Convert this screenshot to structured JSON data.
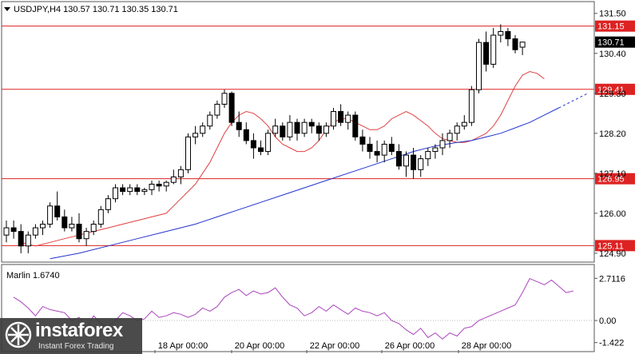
{
  "chart_data": {
    "type": "candlestick",
    "symbol_header": "USDJPY,H4  130.57 130.71 130.35 130.71",
    "y_ticks": [
      "131.50",
      "130.40",
      "129.30",
      "128.20",
      "127.10",
      "126.00",
      "124.90"
    ],
    "x_ticks": [
      "18 Apr 00:00",
      "20 Apr 00:00",
      "22 Apr 00:00",
      "26 Apr 00:00",
      "28 Apr 00:00"
    ],
    "ylim": [
      124.7,
      131.78
    ],
    "current_price": "130.71",
    "levels": [
      {
        "label": "131.15",
        "value": 131.15
      },
      {
        "label": "129.41",
        "value": 129.41
      },
      {
        "label": "126.95",
        "value": 126.95
      },
      {
        "label": "125.11",
        "value": 125.11
      }
    ],
    "colors": {
      "bull": "#ffffff",
      "bear": "#000000",
      "level": "#dd2222",
      "ma_fast": "#e04040",
      "ma_slow": "#2233cc",
      "oscillator": "#aa44bb"
    },
    "candles": [
      [
        125.4,
        125.8,
        125.2,
        125.6
      ],
      [
        125.6,
        125.8,
        125.3,
        125.5
      ],
      [
        125.5,
        125.7,
        124.9,
        125.1
      ],
      [
        125.1,
        125.5,
        124.9,
        125.4
      ],
      [
        125.4,
        125.7,
        125.3,
        125.6
      ],
      [
        125.6,
        125.8,
        125.4,
        125.7
      ],
      [
        125.7,
        126.3,
        125.6,
        126.2
      ],
      [
        126.2,
        126.6,
        125.8,
        125.9
      ],
      [
        125.9,
        126.1,
        125.5,
        125.6
      ],
      [
        125.6,
        125.9,
        125.5,
        125.7
      ],
      [
        125.7,
        126.0,
        125.2,
        125.3
      ],
      [
        125.3,
        125.6,
        125.1,
        125.5
      ],
      [
        125.5,
        125.8,
        125.4,
        125.7
      ],
      [
        125.7,
        126.2,
        125.6,
        126.1
      ],
      [
        126.1,
        126.5,
        126.0,
        126.4
      ],
      [
        126.4,
        126.8,
        126.3,
        126.7
      ],
      [
        126.7,
        126.8,
        126.5,
        126.6
      ],
      [
        126.6,
        126.8,
        126.5,
        126.7
      ],
      [
        126.7,
        126.8,
        126.5,
        126.6
      ],
      [
        126.6,
        126.7,
        126.5,
        126.65
      ],
      [
        126.65,
        126.9,
        126.5,
        126.8
      ],
      [
        126.8,
        126.9,
        126.6,
        126.75
      ],
      [
        126.75,
        126.9,
        126.6,
        126.85
      ],
      [
        126.85,
        127.2,
        126.8,
        127.0
      ],
      [
        127.0,
        127.3,
        126.8,
        127.2
      ],
      [
        127.2,
        128.2,
        127.1,
        128.1
      ],
      [
        128.1,
        128.4,
        127.9,
        128.2
      ],
      [
        128.2,
        128.5,
        128.1,
        128.4
      ],
      [
        128.4,
        128.8,
        128.3,
        128.7
      ],
      [
        128.7,
        129.1,
        128.6,
        129.0
      ],
      [
        129.0,
        129.4,
        128.9,
        129.3
      ],
      [
        129.3,
        129.35,
        128.4,
        128.5
      ],
      [
        128.5,
        128.8,
        128.1,
        128.3
      ],
      [
        128.3,
        128.5,
        127.9,
        128.0
      ],
      [
        128.0,
        128.2,
        127.5,
        127.8
      ],
      [
        127.8,
        128.0,
        127.6,
        127.7
      ],
      [
        127.7,
        128.3,
        127.6,
        128.2
      ],
      [
        128.2,
        128.6,
        128.1,
        128.4
      ],
      [
        128.4,
        128.5,
        128.0,
        128.1
      ],
      [
        128.1,
        128.7,
        128.0,
        128.5
      ],
      [
        128.5,
        128.6,
        128.0,
        128.2
      ],
      [
        128.2,
        128.6,
        128.1,
        128.5
      ],
      [
        128.5,
        128.6,
        128.2,
        128.4
      ],
      [
        128.4,
        128.5,
        128.0,
        128.2
      ],
      [
        128.2,
        128.5,
        128.1,
        128.4
      ],
      [
        128.4,
        128.9,
        128.3,
        128.8
      ],
      [
        128.8,
        129.0,
        128.4,
        128.5
      ],
      [
        128.5,
        128.8,
        128.3,
        128.7
      ],
      [
        128.7,
        128.8,
        128.0,
        128.1
      ],
      [
        128.1,
        128.3,
        127.7,
        127.9
      ],
      [
        127.9,
        128.1,
        127.5,
        127.7
      ],
      [
        127.7,
        128.0,
        127.4,
        127.6
      ],
      [
        127.6,
        128.0,
        127.4,
        127.9
      ],
      [
        127.9,
        128.1,
        127.6,
        127.7
      ],
      [
        127.7,
        127.9,
        127.2,
        127.3
      ],
      [
        127.3,
        127.7,
        127.0,
        127.6
      ],
      [
        127.6,
        127.8,
        126.95,
        127.2
      ],
      [
        127.2,
        127.6,
        127.0,
        127.5
      ],
      [
        127.5,
        127.8,
        127.3,
        127.7
      ],
      [
        127.7,
        127.9,
        127.5,
        127.8
      ],
      [
        127.8,
        128.2,
        127.6,
        128.0
      ],
      [
        128.0,
        128.3,
        127.8,
        128.2
      ],
      [
        128.2,
        128.5,
        128.0,
        128.4
      ],
      [
        128.4,
        128.7,
        128.3,
        128.5
      ],
      [
        128.5,
        129.5,
        128.4,
        129.4
      ],
      [
        129.4,
        130.8,
        129.3,
        130.7
      ],
      [
        130.7,
        131.0,
        129.9,
        130.1
      ],
      [
        130.1,
        131.1,
        130.0,
        130.9
      ],
      [
        130.9,
        131.2,
        130.7,
        131.0
      ],
      [
        131.0,
        131.1,
        130.6,
        130.8
      ],
      [
        130.8,
        130.9,
        130.4,
        130.5
      ],
      [
        130.57,
        130.71,
        130.35,
        130.71
      ]
    ],
    "ma_fast": [
      125.2,
      125.1,
      125.2,
      125.3,
      125.4,
      125.5,
      125.6,
      125.7,
      125.8,
      125.9,
      126.0,
      126.2,
      126.4,
      126.6,
      126.8,
      127.1,
      127.4,
      127.8,
      128.2,
      128.5,
      128.7,
      128.8,
      128.75,
      128.6,
      128.4,
      128.1,
      127.9,
      127.8,
      127.7,
      127.7,
      127.8,
      128.0,
      128.3,
      128.5,
      128.6,
      128.6,
      128.5,
      128.4,
      128.3,
      128.3,
      128.4,
      128.6,
      128.7,
      128.8,
      128.7,
      128.55,
      128.4,
      128.2,
      128.05,
      128.0,
      127.95,
      127.95,
      128.0,
      128.1,
      128.2,
      128.4,
      128.7,
      129.1,
      129.5,
      129.8,
      129.9,
      129.85,
      129.7
    ],
    "ma_fast_x": [
      2,
      4,
      6,
      8,
      10,
      12,
      14,
      16,
      18,
      20,
      22,
      23,
      24,
      25,
      26,
      27,
      28,
      29,
      30,
      31,
      32,
      33,
      34,
      35,
      36,
      37,
      38,
      39,
      40,
      41,
      42,
      43,
      44,
      45,
      46,
      47,
      48,
      49,
      50,
      51,
      52,
      53,
      54,
      55,
      56,
      57,
      58,
      59,
      60,
      61,
      62,
      63,
      64,
      65,
      66,
      67,
      68,
      69,
      70,
      71,
      72,
      73,
      74
    ],
    "ma_slow": [
      124.75,
      124.9,
      125.1,
      125.3,
      125.5,
      125.7,
      125.9,
      126.1,
      126.3,
      126.5,
      126.7,
      126.9,
      127.1,
      127.3,
      127.5,
      127.7,
      127.85,
      127.95,
      128.0,
      128.1,
      128.2,
      128.35,
      128.5,
      128.7,
      128.9
    ],
    "ma_slow_x": [
      6,
      10,
      14,
      18,
      22,
      26,
      29,
      32,
      35,
      38,
      41,
      44,
      47,
      50,
      53,
      56,
      59,
      62,
      64,
      66,
      68,
      70,
      72,
      74,
      76
    ],
    "ma_slow_projection": [
      [
        76,
        128.9
      ],
      [
        80,
        129.3
      ]
    ],
    "oscillator": {
      "label": "Marlin 1.6740",
      "y_ticks": [
        "2.7116",
        "0.00",
        "-1.422"
      ],
      "ylim": [
        -1.9,
        3.5
      ],
      "zero": 0,
      "values": [
        1.5,
        1.2,
        0.8,
        0.3,
        0.9,
        0.7,
        0.6,
        0.5,
        0.0,
        0.2,
        -0.5,
        0.3,
        -0.2,
        -0.4,
        0.0,
        0.5,
        0.3,
        0.0,
        0.1,
        0.6,
        0.2,
        0.3,
        0.5,
        0.4,
        0.2,
        0.4,
        0.8,
        0.6,
        0.9,
        1.5,
        1.8,
        2.0,
        1.6,
        1.9,
        1.7,
        1.8,
        2.1,
        1.5,
        1.0,
        0.8,
        0.3,
        0.5,
        0.9,
        0.6,
        1.0,
        0.7,
        0.4,
        0.8,
        0.6,
        0.5,
        0.3,
        0.5,
        0.0,
        -0.2,
        -0.6,
        -0.9,
        -0.5,
        -1.1,
        -0.8,
        -1.2,
        -0.8,
        -1.0,
        -0.5,
        -0.4,
        0.0,
        0.2,
        0.4,
        0.6,
        0.8,
        1.0,
        1.8,
        2.7,
        2.5,
        2.3,
        2.6,
        2.2,
        1.8,
        1.9
      ],
      "values_x_start": 1
    }
  },
  "watermark": {
    "name": "instaforex",
    "tagline": "Instant Forex Trading"
  }
}
